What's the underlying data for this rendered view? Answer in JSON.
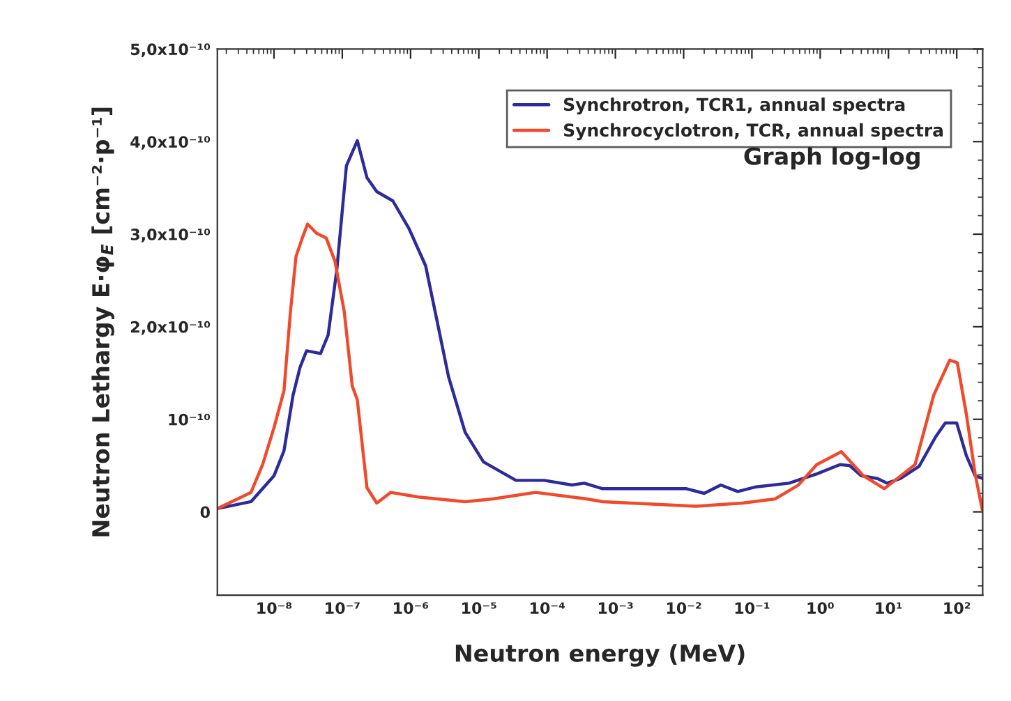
{
  "chart_data": {
    "type": "line",
    "xlabel": "Neutron energy (MeV)",
    "ylabel": "Neutron Lethargy E·φ$_{E}$ [cm⁻²·p⁻¹]",
    "annotations": [
      "Graph log-log"
    ],
    "log": "x",
    "legend": "top right",
    "grid": false,
    "xlim": [
      1.48e-09,
      240
    ],
    "xticks": [
      {
        "value": 1e-08,
        "label": "10⁻⁸"
      },
      {
        "value": 1e-07,
        "label": "10⁻⁷"
      },
      {
        "value": 1e-06,
        "label": "10⁻⁶"
      },
      {
        "value": 1e-05,
        "label": "10⁻⁵"
      },
      {
        "value": 0.0001,
        "label": "10⁻⁴"
      },
      {
        "value": 0.001,
        "label": "10⁻³"
      },
      {
        "value": 0.01,
        "label": "10⁻²"
      },
      {
        "value": 0.1,
        "label": "10⁻¹"
      },
      {
        "value": 1,
        "label": "10⁰"
      },
      {
        "value": 10,
        "label": "10¹"
      },
      {
        "value": 100,
        "label": "10²"
      }
    ],
    "ylim": [
      -9e-11,
      5e-10
    ],
    "yticks": [
      {
        "value": 0,
        "label": "0"
      },
      {
        "value": 1e-10,
        "label": "10⁻¹⁰"
      },
      {
        "value": 2e-10,
        "label": "2,0x10⁻¹⁰"
      },
      {
        "value": 3e-10,
        "label": "3,0x10⁻¹⁰"
      },
      {
        "value": 4e-10,
        "label": "4,0x10⁻¹⁰"
      },
      {
        "value": 5e-10,
        "label": "5,0x10⁻¹⁰"
      }
    ],
    "series": [
      {
        "name": "Synchrotron, TCR1, annual spectra",
        "color": "#2b2b9c",
        "x": [
          1.48e-09,
          4.6e-09,
          1e-08,
          1.4e-08,
          1.9e-08,
          2.4e-08,
          3e-08,
          4.8e-08,
          6.2e-08,
          8.3e-08,
          1.15e-07,
          1.66e-07,
          2.3e-07,
          3.2e-07,
          5.5e-07,
          9.5e-07,
          1.66e-06,
          2.45e-06,
          3.6e-06,
          6.3e-06,
          1.17e-05,
          3.5e-05,
          9.1e-05,
          0.00023,
          0.00035,
          0.00065,
          0.0031,
          0.011,
          0.02,
          0.035,
          0.062,
          0.115,
          0.35,
          0.89,
          1.95,
          2.7,
          4.0,
          6.9,
          9.5,
          15,
          28,
          49,
          68,
          100,
          138,
          186,
          240
        ],
        "values": [
          3.5e-12,
          1.1e-11,
          3.9e-11,
          6.6e-11,
          1.26e-10,
          1.56e-10,
          1.74e-10,
          1.71e-10,
          1.91e-10,
          2.61e-10,
          3.74e-10,
          4.01e-10,
          3.61e-10,
          3.46e-10,
          3.36e-10,
          3.06e-10,
          2.66e-10,
          2.06e-10,
          1.46e-10,
          8.6e-11,
          5.4e-11,
          3.4e-11,
          3.4e-11,
          2.9e-11,
          3.1e-11,
          2.5e-11,
          2.5e-11,
          2.5e-11,
          2e-11,
          2.9e-11,
          2.2e-11,
          2.7e-11,
          3.1e-11,
          4.1e-11,
          5.1e-11,
          5e-11,
          3.9e-11,
          3.6e-11,
          3.1e-11,
          3.6e-11,
          4.9e-11,
          8.1e-11,
          9.6e-11,
          9.6e-11,
          6.1e-11,
          3.9e-11,
          3.6e-11
        ]
      },
      {
        "name": "Synchrocyclotron, TCR, annual spectra",
        "color": "#f04a2c",
        "x": [
          1.48e-09,
          4.6e-09,
          6.8e-09,
          1e-08,
          1.4e-08,
          1.55e-08,
          1.74e-08,
          2.1e-08,
          2.6e-08,
          3.1e-08,
          4.2e-08,
          5.8e-08,
          7.8e-08,
          1.07e-07,
          1.4e-07,
          1.66e-07,
          2.3e-07,
          3.2e-07,
          5.1e-07,
          1.3e-06,
          6.3e-06,
          1.6e-05,
          6.8e-05,
          0.00038,
          0.00065,
          0.015,
          0.072,
          0.22,
          0.48,
          0.89,
          2.04,
          4.3,
          8.7,
          24.5,
          46,
          79,
          102,
          138,
          186,
          240
        ],
        "values": [
          3.5e-12,
          2.1e-11,
          5.1e-11,
          9.1e-11,
          1.31e-10,
          1.71e-10,
          2.16e-10,
          2.76e-10,
          2.96e-10,
          3.11e-10,
          3.01e-10,
          2.96e-10,
          2.71e-10,
          2.16e-10,
          1.36e-10,
          1.21e-10,
          2.6e-11,
          9.5e-12,
          2.1e-11,
          1.6e-11,
          1.1e-11,
          1.4e-11,
          2.1e-11,
          1.4e-11,
          1.1e-11,
          6e-12,
          9.5e-12,
          1.4e-11,
          2.9e-11,
          5.1e-11,
          6.5e-11,
          3.9e-11,
          2.5e-11,
          5.1e-11,
          1.26e-10,
          1.64e-10,
          1.61e-10,
          1.06e-10,
          4.1e-11,
          0
        ]
      }
    ]
  }
}
